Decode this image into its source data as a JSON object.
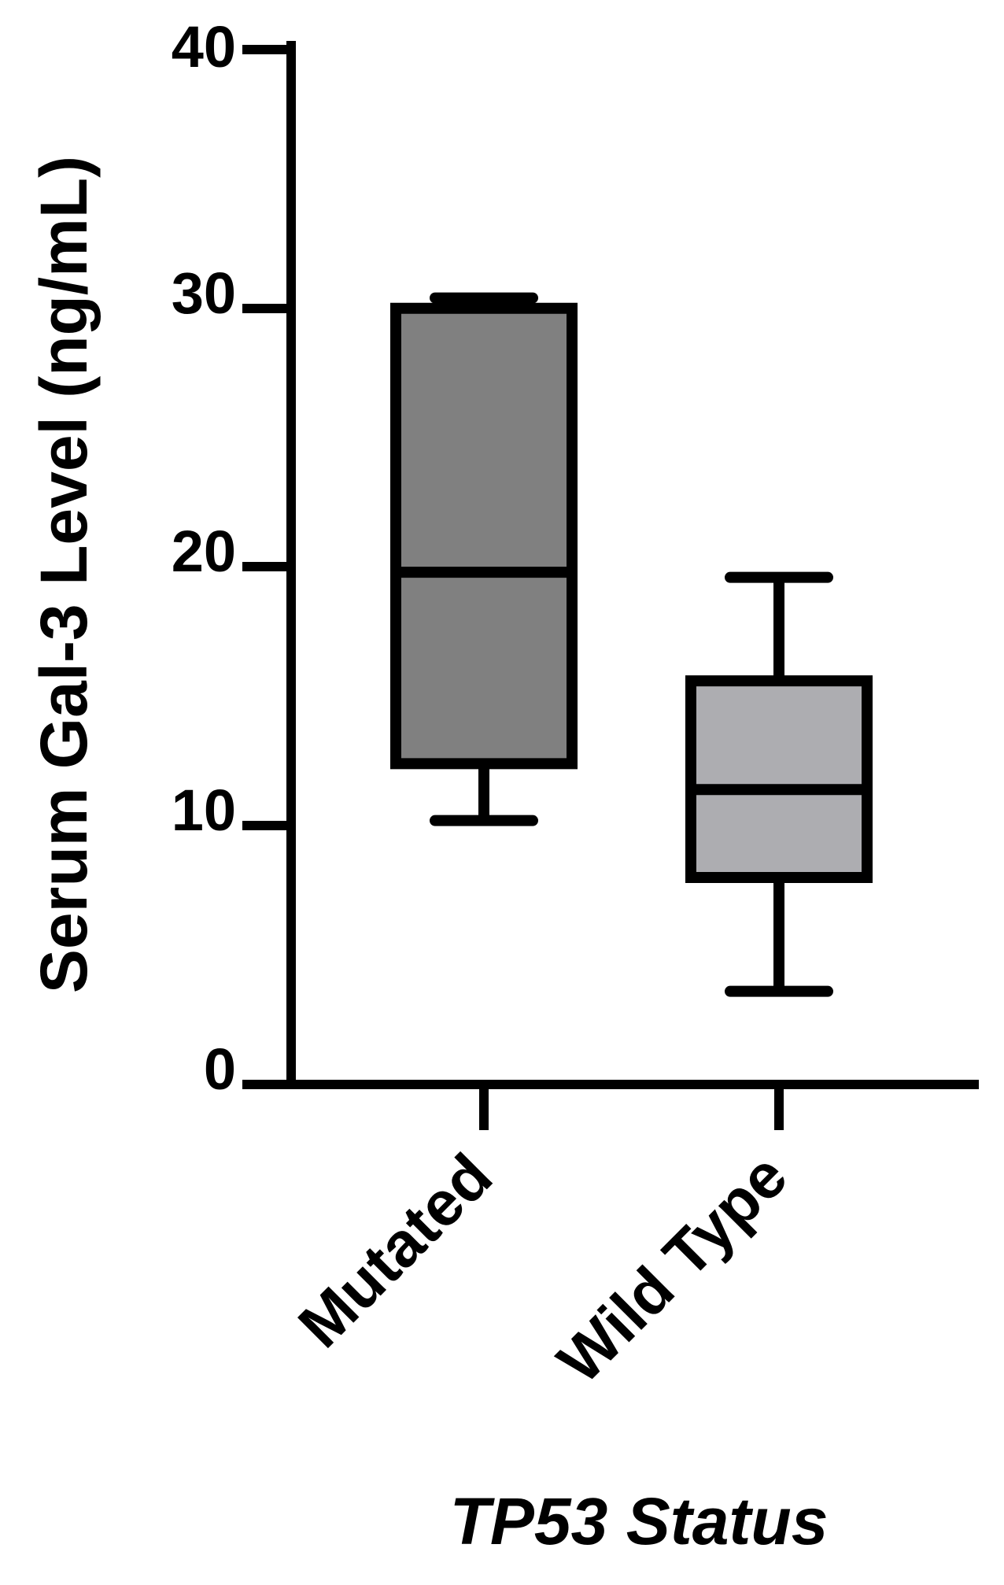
{
  "chart_data": {
    "type": "box",
    "title": "",
    "ylabel": "Serum Gal-3 Level (ng/mL)",
    "xlabel": "TP53 Status",
    "ylim": [
      0,
      40
    ],
    "yticks": [
      0,
      10,
      20,
      30,
      40
    ],
    "ytick_labels": [
      "0",
      "10",
      "20",
      "30",
      "40"
    ],
    "categories": [
      "Mutated",
      "Wild Type"
    ],
    "grid": false,
    "boxes": [
      {
        "category": "Mutated",
        "min": 10.2,
        "q1": 12.4,
        "median": 19.8,
        "q3": 30.0,
        "max": 30.4,
        "fill": "#808080"
      },
      {
        "category": "Wild Type",
        "min": 3.6,
        "q1": 8.0,
        "median": 11.4,
        "q3": 15.6,
        "max": 19.6,
        "fill": "#adadb1"
      }
    ]
  }
}
